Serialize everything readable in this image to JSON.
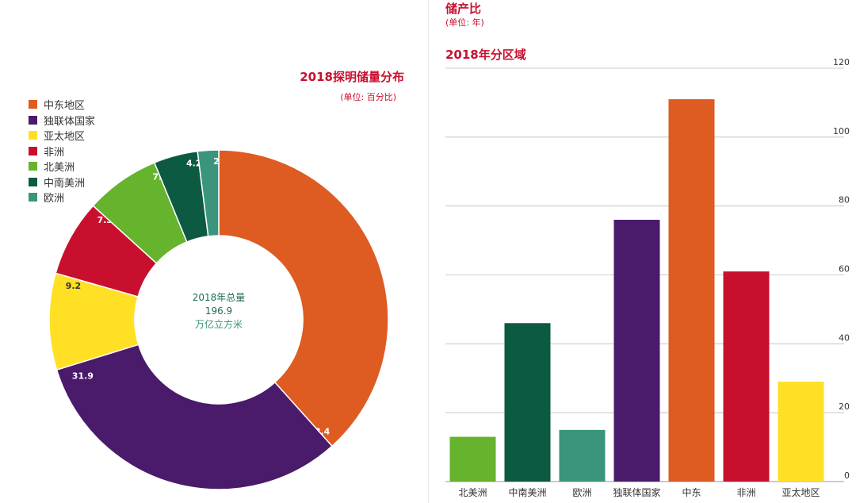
{
  "donut": {
    "title": "2018探明储量分布",
    "unit": "(单位: 百分比)",
    "center_line1": "2018年总量",
    "center_line2": "196.9",
    "center_line3": "万亿立方米"
  },
  "bar": {
    "title_top": "储产比",
    "unit": "(单位: 年)",
    "title": "2018年分区域"
  },
  "chart_data": [
    {
      "type": "pie",
      "title": "2018探明储量分布",
      "subtitle": "(单位: 百分比)",
      "slices": [
        {
          "label": "中东地区",
          "value": 38.4,
          "color": "#de5b22"
        },
        {
          "label": "独联体国家",
          "value": 31.9,
          "color": "#4a1a6b"
        },
        {
          "label": "亚太地区",
          "value": 9.2,
          "color": "#ffe024"
        },
        {
          "label": "非洲",
          "value": 7.3,
          "color": "#c8102e"
        },
        {
          "label": "北美洲",
          "value": 7.1,
          "color": "#66b32e"
        },
        {
          "label": "中南美洲",
          "value": 4.2,
          "color": "#0d5a42"
        },
        {
          "label": "欧洲",
          "value": 2.0,
          "color": "#3a957c"
        }
      ],
      "legend_position": "top-left",
      "center_text": [
        "2018年总量",
        "196.9",
        "万亿立方米"
      ]
    },
    {
      "type": "bar",
      "title": "2018年分区域",
      "subtitle": "(单位: 年)",
      "categories": [
        "北美洲",
        "中南美洲",
        "欧洲",
        "独联体国家",
        "中东",
        "非洲",
        "亚太地区"
      ],
      "values": [
        13,
        46,
        15,
        76,
        111,
        61,
        29
      ],
      "colors": [
        "#66b32e",
        "#0d5a42",
        "#3a957c",
        "#4a1a6b",
        "#de5b22",
        "#c8102e",
        "#ffe024"
      ],
      "ylim": [
        0,
        120
      ],
      "yticks": [
        0,
        20,
        40,
        60,
        80,
        100,
        120
      ],
      "grid": true,
      "y_axis_side": "right"
    }
  ]
}
